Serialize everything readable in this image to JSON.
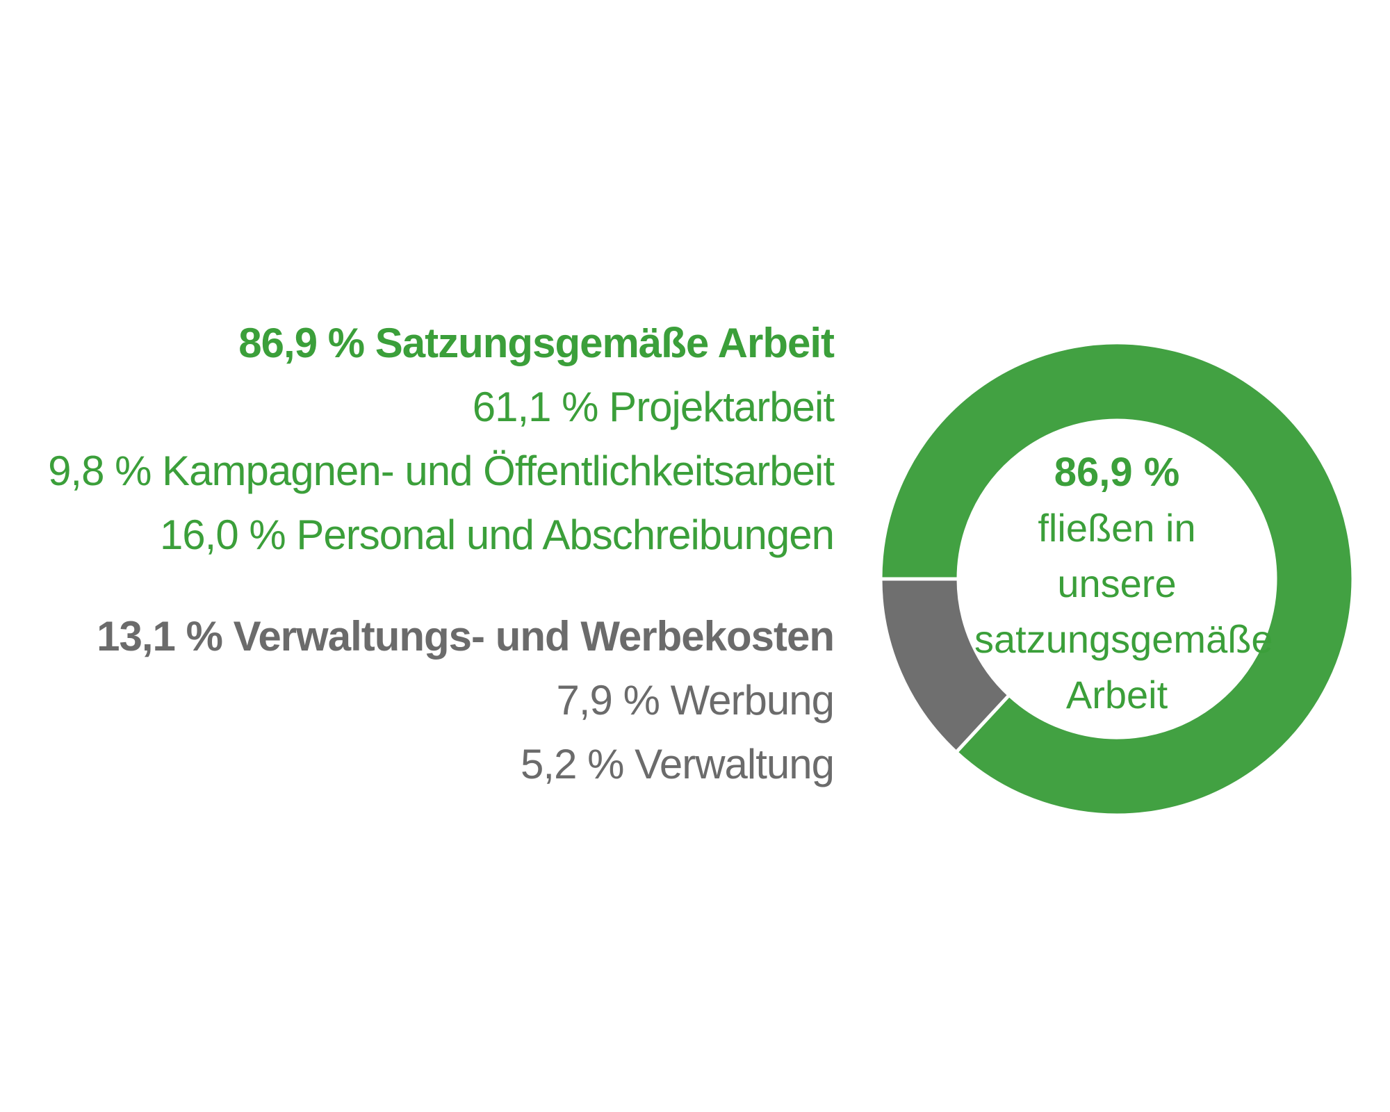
{
  "chart_data": {
    "type": "pie",
    "variant": "donut",
    "groups": [
      {
        "label": "86,9 % Satzungsgemäße Arbeit",
        "value": 86.9,
        "color": "#42a142",
        "items": [
          {
            "label": "61,1 % Projektarbeit",
            "value": 61.1
          },
          {
            "label": "9,8 % Kampagnen- und Öffentlichkeitsarbeit",
            "value": 9.8
          },
          {
            "label": "16,0 % Personal und Abschreibungen",
            "value": 16.0
          }
        ]
      },
      {
        "label": "13,1 % Verwaltungs- und Werbekosten",
        "value": 13.1,
        "color": "#6f6f6f",
        "items": [
          {
            "label": "7,9 % Werbung",
            "value": 7.9
          },
          {
            "label": "5,2 % Verwaltung",
            "value": 5.2
          }
        ]
      }
    ],
    "slices": [
      {
        "name": "Satzungsgemäße Arbeit",
        "value": 86.9,
        "color": "#42a142"
      },
      {
        "name": "Verwaltungs- und Werbekosten",
        "value": 13.1,
        "color": "#6f6f6f"
      }
    ],
    "center": {
      "value": "86,9 %",
      "caption_lines": [
        "fließen in unsere",
        "satzungsgemäße",
        "Arbeit"
      ]
    }
  }
}
